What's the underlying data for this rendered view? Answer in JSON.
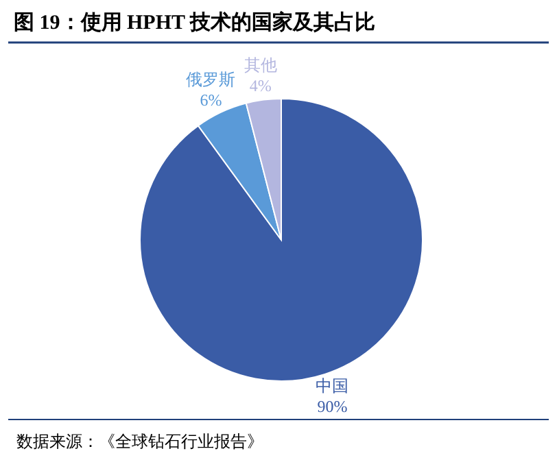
{
  "chart_data": {
    "type": "pie",
    "title": "图 19：使用 HPHT 技术的国家及其占比",
    "categories": [
      "中国",
      "俄罗斯",
      "其他"
    ],
    "values": [
      90,
      6,
      4
    ],
    "value_labels": [
      "90%",
      "6%",
      "4%"
    ],
    "colors": [
      "#3a5ca6",
      "#5a9ad8",
      "#b3b6df"
    ],
    "annotations": [
      "数据来源：《全球钻石行业报告》"
    ]
  }
}
